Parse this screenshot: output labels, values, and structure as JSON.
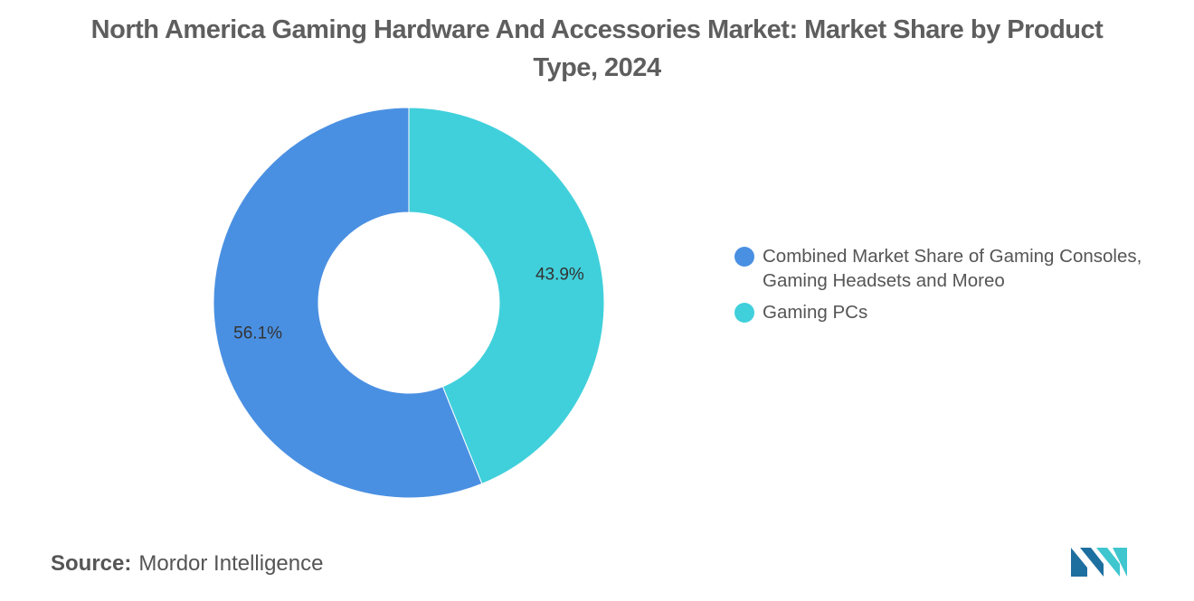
{
  "title": "North America Gaming Hardware And Accessories Market: Market Share by Product Type, 2024",
  "chart_data": {
    "type": "pie",
    "variant": "donut",
    "title": "North America Gaming Hardware And Accessories Market: Market Share by Product Type, 2024",
    "start_angle_deg": 0,
    "direction": "clockwise",
    "legend_position": "right",
    "series": [
      {
        "name": "Combined Market Share of Gaming Consoles, Gaming Headsets and Moreo",
        "value": 56.1,
        "label": "56.1%",
        "color": "#4a90e2"
      },
      {
        "name": "Gaming PCs",
        "value": 43.9,
        "label": "43.9%",
        "color": "#40d0db"
      }
    ]
  },
  "legend": {
    "items": [
      {
        "label": "Combined Market Share of Gaming Consoles, Gaming Headsets and Moreo",
        "color": "#4a90e2"
      },
      {
        "label": "Gaming PCs",
        "color": "#40d0db"
      }
    ]
  },
  "source": {
    "key": "Source:",
    "value": "Mordor Intelligence"
  },
  "logo": {
    "icon": "mordor-intelligence-logo-icon",
    "colors": [
      "#1d6f9f",
      "#3fc6cf"
    ]
  }
}
